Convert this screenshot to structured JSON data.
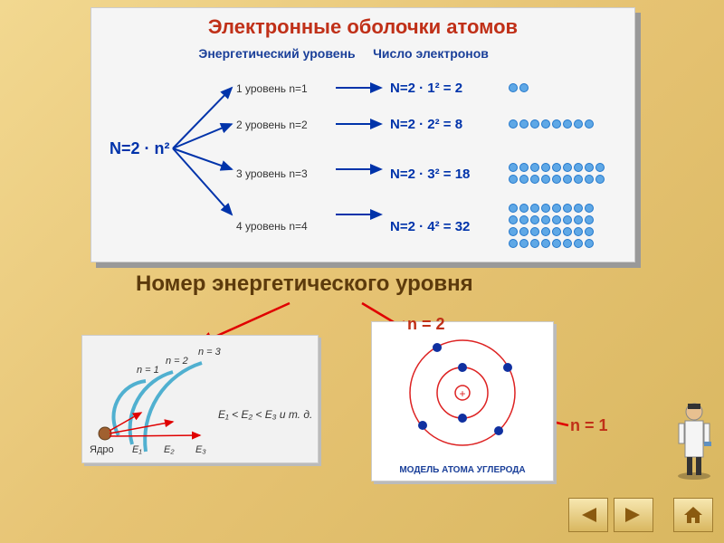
{
  "colors": {
    "title": "#c03018",
    "header": "#1a3f99",
    "formula": "#0033aa",
    "accent": "#c03018",
    "dot_fill": "#5fa8e6",
    "dot_stroke": "#2277cc",
    "subtitle": "#5c3a0c",
    "nav_arrow": "#8a5a10",
    "red_arrow": "#e00000",
    "carbon_caption": "#1a3f99"
  },
  "panel": {
    "title": "Электронные оболочки атомов",
    "header_energy": "Энергетический уровень",
    "header_count": "Число электронов",
    "formula": "N=2 · n²",
    "levels": [
      {
        "label": "1 уровень n=1",
        "calc": "N=2 · 1² = 2",
        "count": 2,
        "cols": 2
      },
      {
        "label": "2 уровень n=2",
        "calc": "N=2 · 2² = 8",
        "count": 8,
        "cols": 8
      },
      {
        "label": "3 уровень n=3",
        "calc": "N=2 · 3² = 18",
        "count": 18,
        "cols": 9
      },
      {
        "label": "4 уровень n=4",
        "calc": "N=2 · 4² = 32",
        "count": 32,
        "cols": 8
      }
    ]
  },
  "subtitle": "Номер энергетического уровня",
  "left_diagram": {
    "n_labels": [
      "n = 1",
      "n = 2",
      "n = 3"
    ],
    "e_labels": [
      "E₁",
      "E₂",
      "E₃"
    ],
    "inequality": "E₁ < E₂ < E₃ и т. д.",
    "nucleus": "Ядро",
    "arc_color": "#50b0d0",
    "arrow_color": "#e00000"
  },
  "right_diagram": {
    "caption": "МОДЕЛЬ АТОМА УГЛЕРОДА",
    "orbit_color": "#dd2222",
    "electron_color": "#1030a0",
    "nucleus_color": "#dd2222",
    "n2_text": "n = 2",
    "n1_text": "n = 1",
    "electrons_inner": 2,
    "electrons_outer": 4
  }
}
